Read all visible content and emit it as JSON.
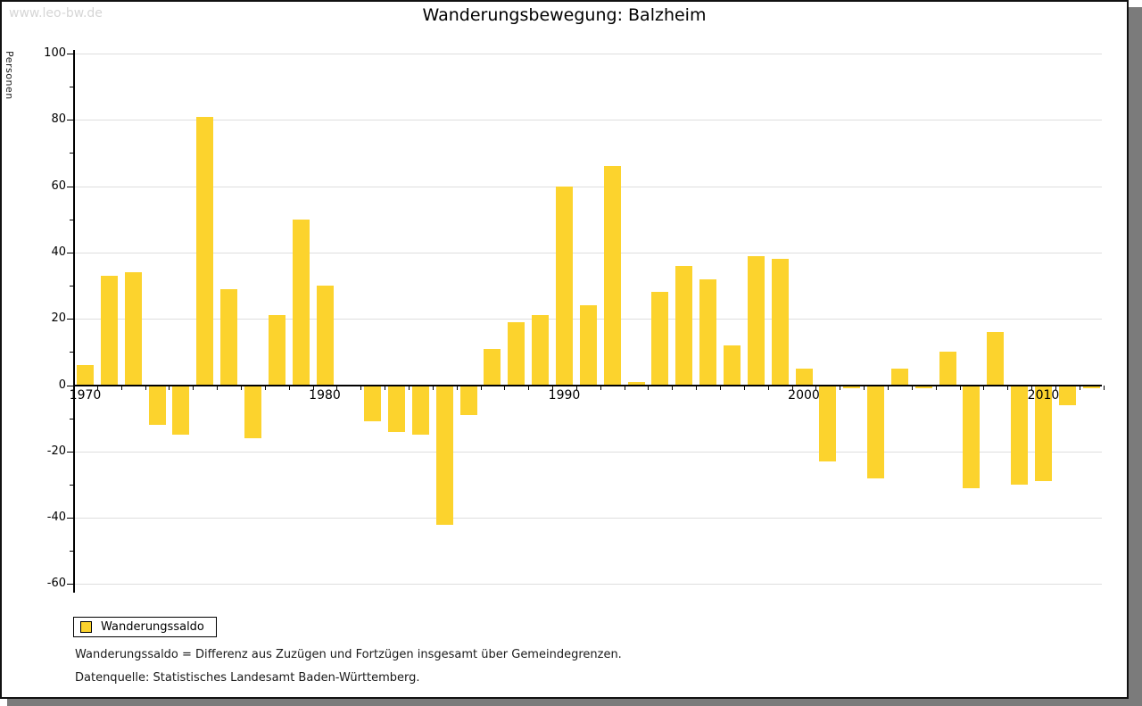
{
  "watermark": "www.leo-bw.de",
  "header": {
    "title": "Wanderungsbewegung: Balzheim"
  },
  "legend": {
    "label": "Wanderungssaldo"
  },
  "footnotes": {
    "definition": "Wanderungssaldo = Differenz aus Zuzügen und Fortzügen insgesamt über Gemeindegrenzen.",
    "source": "Datenquelle: Statistisches Landesamt Baden-Württemberg."
  },
  "colors": {
    "bar": "#fcd32d",
    "grid": "#dedede",
    "axis": "#000000",
    "frame_shadow": "#7b7b7b",
    "watermark": "#d6d6d6"
  },
  "chart_data": {
    "type": "bar",
    "title": "Wanderungsbewegung: Balzheim",
    "xlabel": "",
    "ylabel": "Personen",
    "series_name": "Wanderungssaldo",
    "x": [
      1970,
      1971,
      1972,
      1973,
      1974,
      1975,
      1976,
      1977,
      1978,
      1979,
      1980,
      1981,
      1982,
      1983,
      1984,
      1985,
      1986,
      1987,
      1988,
      1989,
      1990,
      1991,
      1992,
      1993,
      1994,
      1995,
      1996,
      1997,
      1998,
      1999,
      2000,
      2001,
      2002,
      2003,
      2004,
      2005,
      2006,
      2007,
      2008,
      2009,
      2010,
      2011,
      2012
    ],
    "values": [
      6,
      33,
      34,
      -12,
      -15,
      81,
      29,
      -16,
      21,
      50,
      30,
      0,
      -11,
      -14,
      -15,
      -42,
      -9,
      11,
      19,
      21,
      60,
      24,
      66,
      1,
      28,
      36,
      32,
      12,
      39,
      38,
      5,
      -23,
      -1,
      -28,
      5,
      -1,
      10,
      -31,
      16,
      -30,
      -29,
      -6,
      -1
    ],
    "ylim": [
      -60,
      100
    ],
    "ytick_step": 20,
    "ytick_labels": [
      100,
      80,
      60,
      40,
      20,
      0,
      -20,
      -40,
      -60
    ],
    "xticks_labeled": [
      1970,
      1980,
      1990,
      2000,
      2010
    ],
    "grid": "horizontal",
    "legend_position": "bottom-left"
  }
}
